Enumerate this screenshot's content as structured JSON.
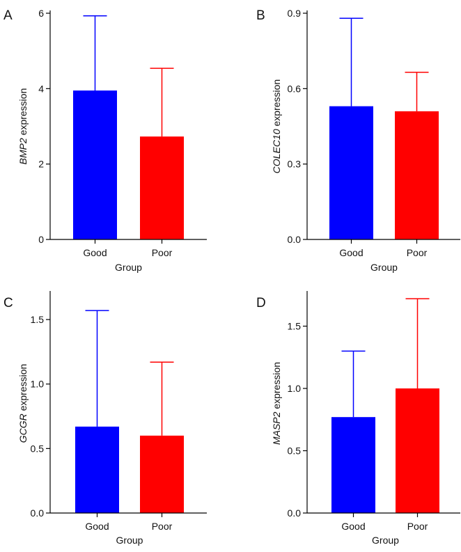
{
  "figure": {
    "panels": [
      "A",
      "B",
      "C",
      "D"
    ]
  },
  "chart_data": [
    {
      "panel": "A",
      "type": "bar",
      "categories": [
        "Good",
        "Poor"
      ],
      "values": [
        3.95,
        2.73
      ],
      "error_upper": [
        5.93,
        4.54
      ],
      "colors": [
        "#0000ff",
        "#ff0000"
      ],
      "xlabel": "Group",
      "ylabel_gene": "BMP2",
      "ylabel_suffix": " expression",
      "ylim": [
        0,
        6
      ],
      "yticks": [
        0,
        2,
        4,
        6
      ],
      "ytick_labels": [
        "0",
        "2",
        "4",
        "6"
      ]
    },
    {
      "panel": "B",
      "type": "bar",
      "categories": [
        "Good",
        "Poor"
      ],
      "values": [
        0.53,
        0.51
      ],
      "error_upper": [
        0.88,
        0.665
      ],
      "colors": [
        "#0000ff",
        "#ff0000"
      ],
      "xlabel": "Group",
      "ylabel_gene": "COLEC10",
      "ylabel_suffix": " expression",
      "ylim": [
        0,
        0.9
      ],
      "yticks": [
        0,
        0.3,
        0.6,
        0.9
      ],
      "ytick_labels": [
        "0.0",
        "0.3",
        "0.6",
        "0.9"
      ]
    },
    {
      "panel": "C",
      "type": "bar",
      "categories": [
        "Good",
        "Poor"
      ],
      "values": [
        0.67,
        0.6
      ],
      "error_upper": [
        1.57,
        1.17
      ],
      "colors": [
        "#0000ff",
        "#ff0000"
      ],
      "xlabel": "Group",
      "ylabel_gene": "GCGR",
      "ylabel_suffix": " expression",
      "ylim": [
        0,
        1.7
      ],
      "yticks": [
        0,
        0.5,
        1.0,
        1.5
      ],
      "ytick_labels": [
        "0.0",
        "0.5",
        "1.0",
        "1.5"
      ]
    },
    {
      "panel": "D",
      "type": "bar",
      "categories": [
        "Good",
        "Poor"
      ],
      "values": [
        0.77,
        1.0
      ],
      "error_upper": [
        1.3,
        1.72
      ],
      "colors": [
        "#0000ff",
        "#ff0000"
      ],
      "xlabel": "Group",
      "ylabel_gene": "MASP2",
      "ylabel_suffix": " expression",
      "ylim": [
        0,
        1.76
      ],
      "yticks": [
        0,
        0.5,
        1.0,
        1.5
      ],
      "ytick_labels": [
        "0.0",
        "0.5",
        "1.0",
        "1.5"
      ]
    }
  ]
}
